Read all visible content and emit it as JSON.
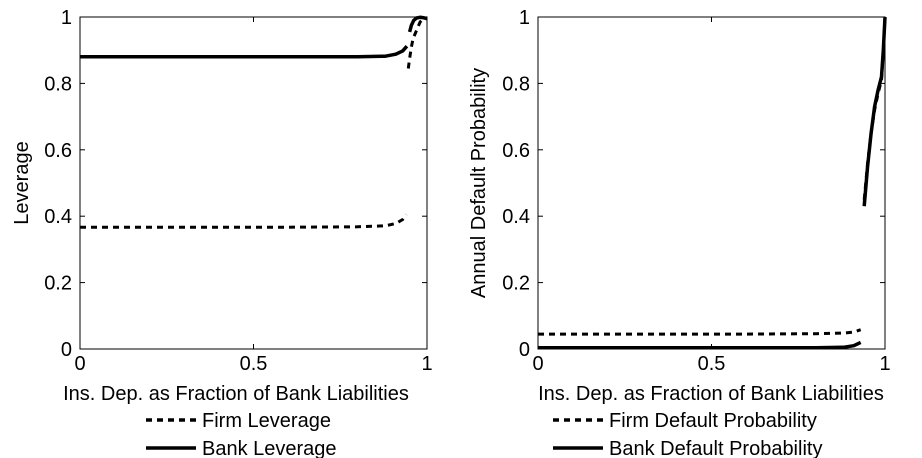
{
  "chart_data": [
    {
      "type": "line",
      "title": "",
      "xlabel": "Ins. Dep. as Fraction of Bank Liabilities",
      "ylabel": "Leverage",
      "xlim": [
        0,
        1
      ],
      "ylim": [
        0,
        1
      ],
      "xticks": [
        "0",
        "0.5",
        "1"
      ],
      "yticks": [
        "0",
        "0.2",
        "0.4",
        "0.6",
        "0.8",
        "1"
      ],
      "grid": false,
      "legend_position": "below",
      "series": [
        {
          "name": "Firm Leverage",
          "style": "dotted",
          "segments": [
            [
              [
                0,
                0.367
              ],
              [
                0.2,
                0.367
              ],
              [
                0.4,
                0.367
              ],
              [
                0.6,
                0.367
              ],
              [
                0.8,
                0.368
              ],
              [
                0.88,
                0.371
              ],
              [
                0.91,
                0.378
              ],
              [
                0.93,
                0.39
              ],
              [
                0.94,
                0.405
              ]
            ],
            [
              [
                0.946,
                0.845
              ],
              [
                0.95,
                0.875
              ],
              [
                0.955,
                0.91
              ],
              [
                0.96,
                0.935
              ],
              [
                0.97,
                0.96
              ],
              [
                0.98,
                0.985
              ],
              [
                0.99,
                0.995
              ],
              [
                1.0,
                0.998
              ]
            ]
          ]
        },
        {
          "name": "Bank Leverage",
          "style": "solid",
          "segments": [
            [
              [
                0,
                0.88
              ],
              [
                0.2,
                0.88
              ],
              [
                0.4,
                0.88
              ],
              [
                0.6,
                0.88
              ],
              [
                0.8,
                0.88
              ],
              [
                0.88,
                0.882
              ],
              [
                0.91,
                0.888
              ],
              [
                0.93,
                0.898
              ],
              [
                0.942,
                0.912
              ]
            ],
            [
              [
                0.95,
                0.955
              ],
              [
                0.955,
                0.975
              ],
              [
                0.962,
                0.99
              ],
              [
                0.97,
                0.997
              ],
              [
                0.98,
                0.999
              ],
              [
                0.99,
                0.998
              ],
              [
                1.0,
                0.995
              ]
            ]
          ]
        }
      ]
    },
    {
      "type": "line",
      "title": "",
      "xlabel": "Ins. Dep. as Fraction of Bank Liabilities",
      "ylabel": "Annual Default Probability",
      "xlim": [
        0,
        1
      ],
      "ylim": [
        0,
        1
      ],
      "xticks": [
        "0",
        "0.5",
        "1"
      ],
      "yticks": [
        "0",
        "0.2",
        "0.4",
        "0.6",
        "0.8",
        "1"
      ],
      "grid": false,
      "legend_position": "below",
      "series": [
        {
          "name": "Firm Default Probability",
          "style": "dotted",
          "segments": [
            [
              [
                0,
                0.045
              ],
              [
                0.2,
                0.045
              ],
              [
                0.4,
                0.045
              ],
              [
                0.6,
                0.045
              ],
              [
                0.8,
                0.046
              ],
              [
                0.88,
                0.048
              ],
              [
                0.91,
                0.051
              ],
              [
                0.93,
                0.058
              ]
            ],
            [
              [
                0.94,
                0.45
              ],
              [
                0.95,
                0.56
              ],
              [
                0.96,
                0.65
              ],
              [
                0.97,
                0.72
              ],
              [
                0.98,
                0.77
              ],
              [
                0.99,
                0.81
              ],
              [
                0.995,
                0.9
              ],
              [
                1.0,
                1.0
              ]
            ]
          ]
        },
        {
          "name": "Bank Default Probability",
          "style": "solid",
          "segments": [
            [
              [
                0,
                0.004
              ],
              [
                0.2,
                0.004
              ],
              [
                0.4,
                0.004
              ],
              [
                0.6,
                0.004
              ],
              [
                0.8,
                0.004
              ],
              [
                0.88,
                0.005
              ],
              [
                0.91,
                0.01
              ],
              [
                0.93,
                0.02
              ]
            ],
            [
              [
                0.94,
                0.43
              ],
              [
                0.95,
                0.55
              ],
              [
                0.96,
                0.65
              ],
              [
                0.97,
                0.73
              ],
              [
                0.98,
                0.78
              ],
              [
                0.99,
                0.82
              ],
              [
                0.995,
                0.9
              ],
              [
                1.0,
                1.0
              ]
            ]
          ]
        }
      ]
    }
  ]
}
